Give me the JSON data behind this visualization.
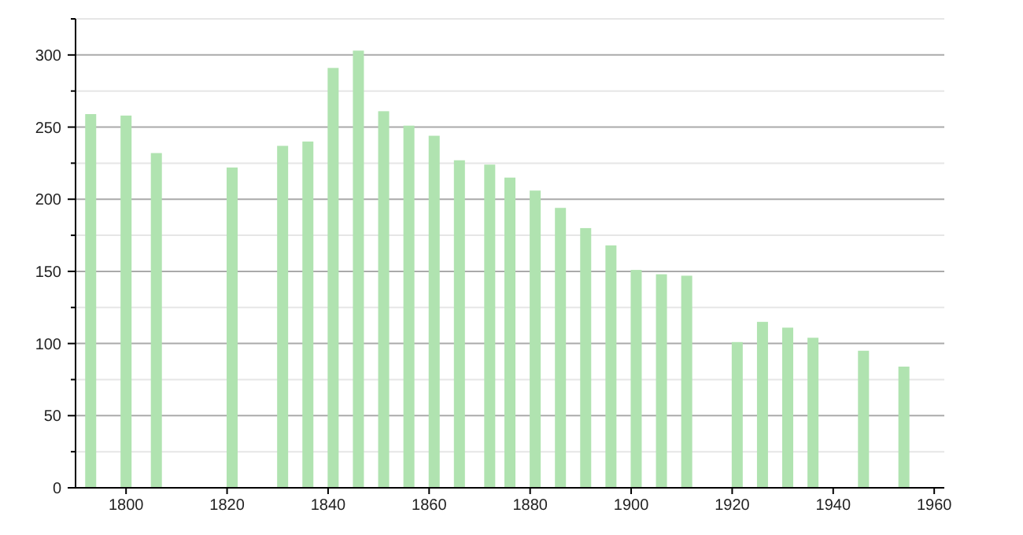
{
  "chart_data": {
    "type": "bar",
    "x": [
      1793,
      1800,
      1806,
      1821,
      1831,
      1836,
      1841,
      1846,
      1851,
      1856,
      1861,
      1866,
      1872,
      1876,
      1881,
      1886,
      1891,
      1896,
      1901,
      1906,
      1911,
      1921,
      1926,
      1931,
      1936,
      1946,
      1954
    ],
    "values": [
      259,
      258,
      232,
      222,
      237,
      240,
      291,
      303,
      261,
      251,
      244,
      227,
      224,
      215,
      206,
      194,
      180,
      168,
      151,
      148,
      147,
      101,
      115,
      111,
      104,
      95,
      84
    ],
    "color": "#b0e3b0",
    "xlim": [
      1790,
      1962
    ],
    "xticks": [
      1800,
      1820,
      1840,
      1860,
      1880,
      1900,
      1920,
      1940,
      1960
    ],
    "ylim": [
      0,
      325
    ],
    "yticks": [
      0,
      {
        "value": 25,
        "label": null
      },
      50,
      {
        "value": 75,
        "label": null
      },
      100,
      {
        "value": 125,
        "label": null
      },
      150,
      {
        "value": 175,
        "label": null
      },
      200,
      {
        "value": 225,
        "label": null
      },
      250,
      {
        "value": 275,
        "label": null
      },
      300,
      {
        "value": 325,
        "label": null
      }
    ],
    "grid": "y"
  }
}
